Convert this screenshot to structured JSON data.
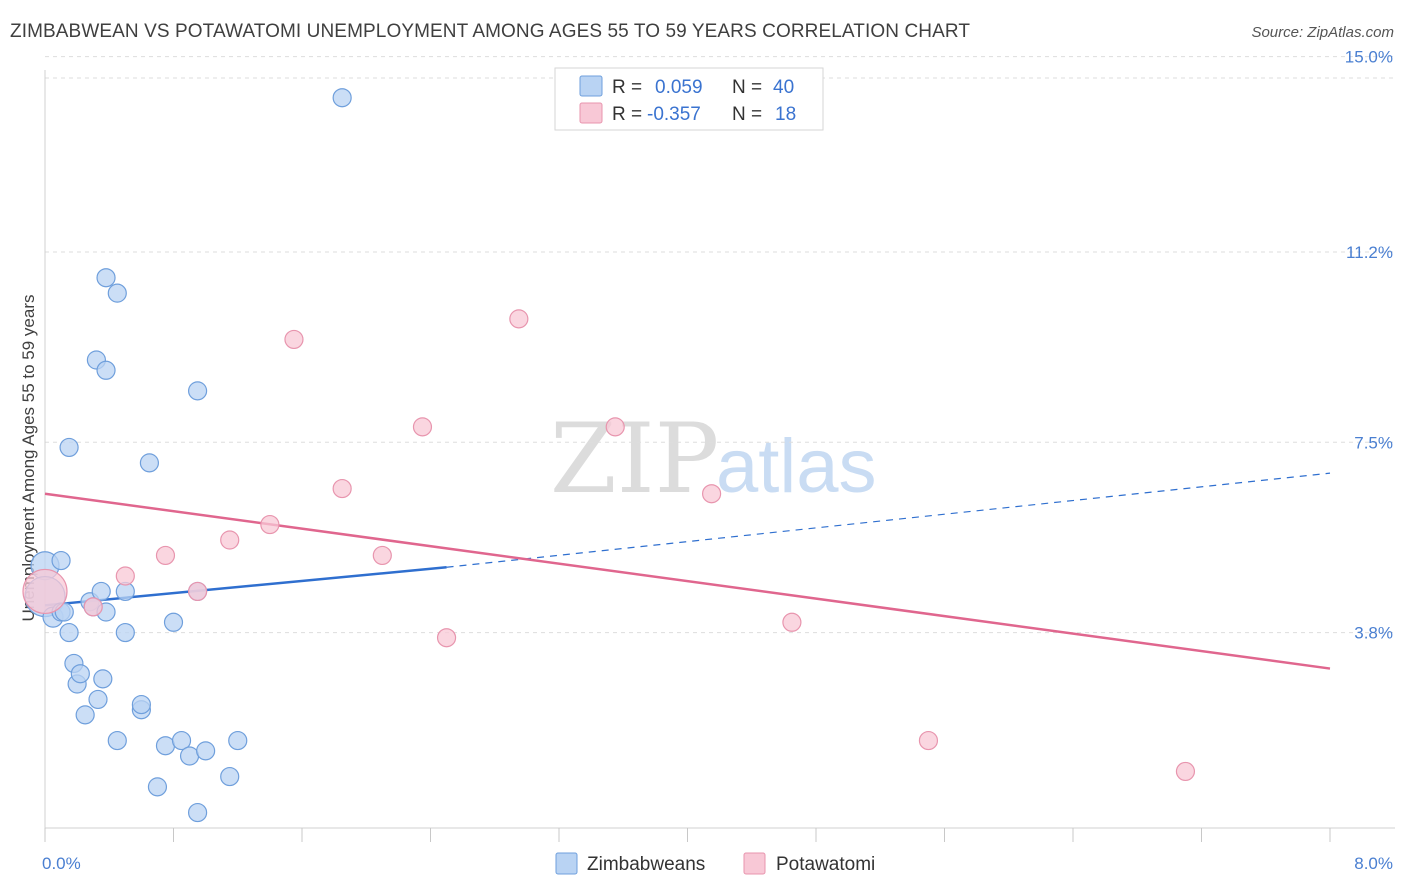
{
  "title": "ZIMBABWEAN VS POTAWATOMI UNEMPLOYMENT AMONG AGES 55 TO 59 YEARS CORRELATION CHART",
  "source": "Source: ZipAtlas.com",
  "watermark": {
    "part1": "ZIP",
    "part2": "atlas"
  },
  "legend": {
    "rows": [
      {
        "r_label": "R =",
        "r_value": "0.059",
        "n_label": "N =",
        "n_value": "40",
        "color": "#b9d3f3",
        "stroke": "#6f9fdc"
      },
      {
        "r_label": "R =",
        "r_value": "-0.357",
        "n_label": "N =",
        "n_value": "18",
        "color": "#f8c8d6",
        "stroke": "#e895ae"
      }
    ]
  },
  "bottom_legend": [
    "Zimbabweans",
    "Potawatomi"
  ],
  "colors": {
    "blue_fill": "#b9d3f3",
    "blue_stroke": "#6f9fdc",
    "blue_line": "#2f6fcf",
    "pink_fill": "#f8c8d6",
    "pink_stroke": "#e895ae",
    "pink_line": "#e0668e",
    "tick_text": "#4a7fd1",
    "grid": "#dddddd"
  },
  "chart_data": {
    "type": "scatter",
    "title": "ZIMBABWEAN VS POTAWATOMI UNEMPLOYMENT AMONG AGES 55 TO 59 YEARS CORRELATION CHART",
    "xlabel": "",
    "ylabel": "Unemployment Among Ages 55 to 59 years",
    "xlim": [
      0,
      8.0
    ],
    "ylim": [
      0,
      15.4
    ],
    "x_tick_labels": [
      "0.0%",
      "8.0%"
    ],
    "y_ticks": [
      3.8,
      7.5,
      11.2,
      15.0
    ],
    "y_tick_labels": [
      "3.8%",
      "7.5%",
      "11.2%",
      "15.0%"
    ],
    "series": [
      {
        "name": "Zimbabweans",
        "r": 0.059,
        "n": 40,
        "points": [
          [
            0.0,
            5.1,
            14
          ],
          [
            0.0,
            4.5,
            20
          ],
          [
            0.05,
            4.1,
            10
          ],
          [
            0.1,
            4.2,
            9
          ],
          [
            0.15,
            3.8,
            9
          ],
          [
            0.1,
            5.2,
            9
          ],
          [
            0.12,
            4.2,
            9
          ],
          [
            0.18,
            3.2,
            9
          ],
          [
            0.2,
            2.8,
            9
          ],
          [
            0.22,
            3.0,
            9
          ],
          [
            0.25,
            2.2,
            9
          ],
          [
            0.28,
            4.4,
            9
          ],
          [
            0.3,
            4.3,
            9
          ],
          [
            0.33,
            2.5,
            9
          ],
          [
            0.36,
            2.9,
            9
          ],
          [
            0.38,
            4.2,
            9
          ],
          [
            0.35,
            4.6,
            9
          ],
          [
            0.5,
            4.6,
            9
          ],
          [
            0.5,
            3.8,
            9
          ],
          [
            0.45,
            1.7,
            9
          ],
          [
            0.6,
            2.3,
            9
          ],
          [
            0.6,
            2.4,
            9
          ],
          [
            0.75,
            1.6,
            9
          ],
          [
            0.85,
            1.7,
            9
          ],
          [
            0.9,
            1.4,
            9
          ],
          [
            0.95,
            4.6,
            9
          ],
          [
            0.7,
            0.8,
            9
          ],
          [
            0.95,
            0.3,
            9
          ],
          [
            0.8,
            4.0,
            9
          ],
          [
            1.0,
            1.5,
            9
          ],
          [
            1.15,
            1.0,
            9
          ],
          [
            0.65,
            7.1,
            9
          ],
          [
            1.2,
            1.7,
            9
          ],
          [
            0.15,
            7.4,
            9
          ],
          [
            0.38,
            10.7,
            9
          ],
          [
            0.45,
            10.4,
            9
          ],
          [
            0.32,
            9.1,
            9
          ],
          [
            0.38,
            8.9,
            9
          ],
          [
            0.95,
            8.5,
            9
          ],
          [
            1.85,
            14.2,
            9
          ]
        ],
        "notes": "radius values are marker sizes"
      },
      {
        "name": "Potawatomi",
        "r": -0.357,
        "n": 18,
        "points": [
          [
            0.0,
            4.6,
            22
          ],
          [
            0.3,
            4.3,
            9
          ],
          [
            0.5,
            4.9,
            9
          ],
          [
            0.75,
            5.3,
            9
          ],
          [
            0.95,
            4.6,
            9
          ],
          [
            1.15,
            5.6,
            9
          ],
          [
            1.4,
            5.9,
            9
          ],
          [
            1.55,
            9.5,
            9
          ],
          [
            1.85,
            6.6,
            9
          ],
          [
            2.1,
            5.3,
            9
          ],
          [
            2.35,
            7.8,
            9
          ],
          [
            2.5,
            3.7,
            9
          ],
          [
            2.95,
            9.9,
            9
          ],
          [
            3.55,
            7.8,
            9
          ],
          [
            4.15,
            6.5,
            9
          ],
          [
            4.65,
            4.0,
            9
          ],
          [
            5.5,
            1.7,
            9
          ],
          [
            7.1,
            1.1,
            9
          ]
        ]
      }
    ],
    "trend_lines": [
      {
        "series": "Zimbabweans",
        "solid_from": [
          0.0,
          4.33
        ],
        "solid_to": [
          2.5,
          5.07
        ],
        "dashed_to": [
          8.0,
          6.9
        ]
      },
      {
        "series": "Potawatomi",
        "from": [
          0.0,
          6.5
        ],
        "to": [
          8.0,
          3.1
        ]
      }
    ]
  }
}
